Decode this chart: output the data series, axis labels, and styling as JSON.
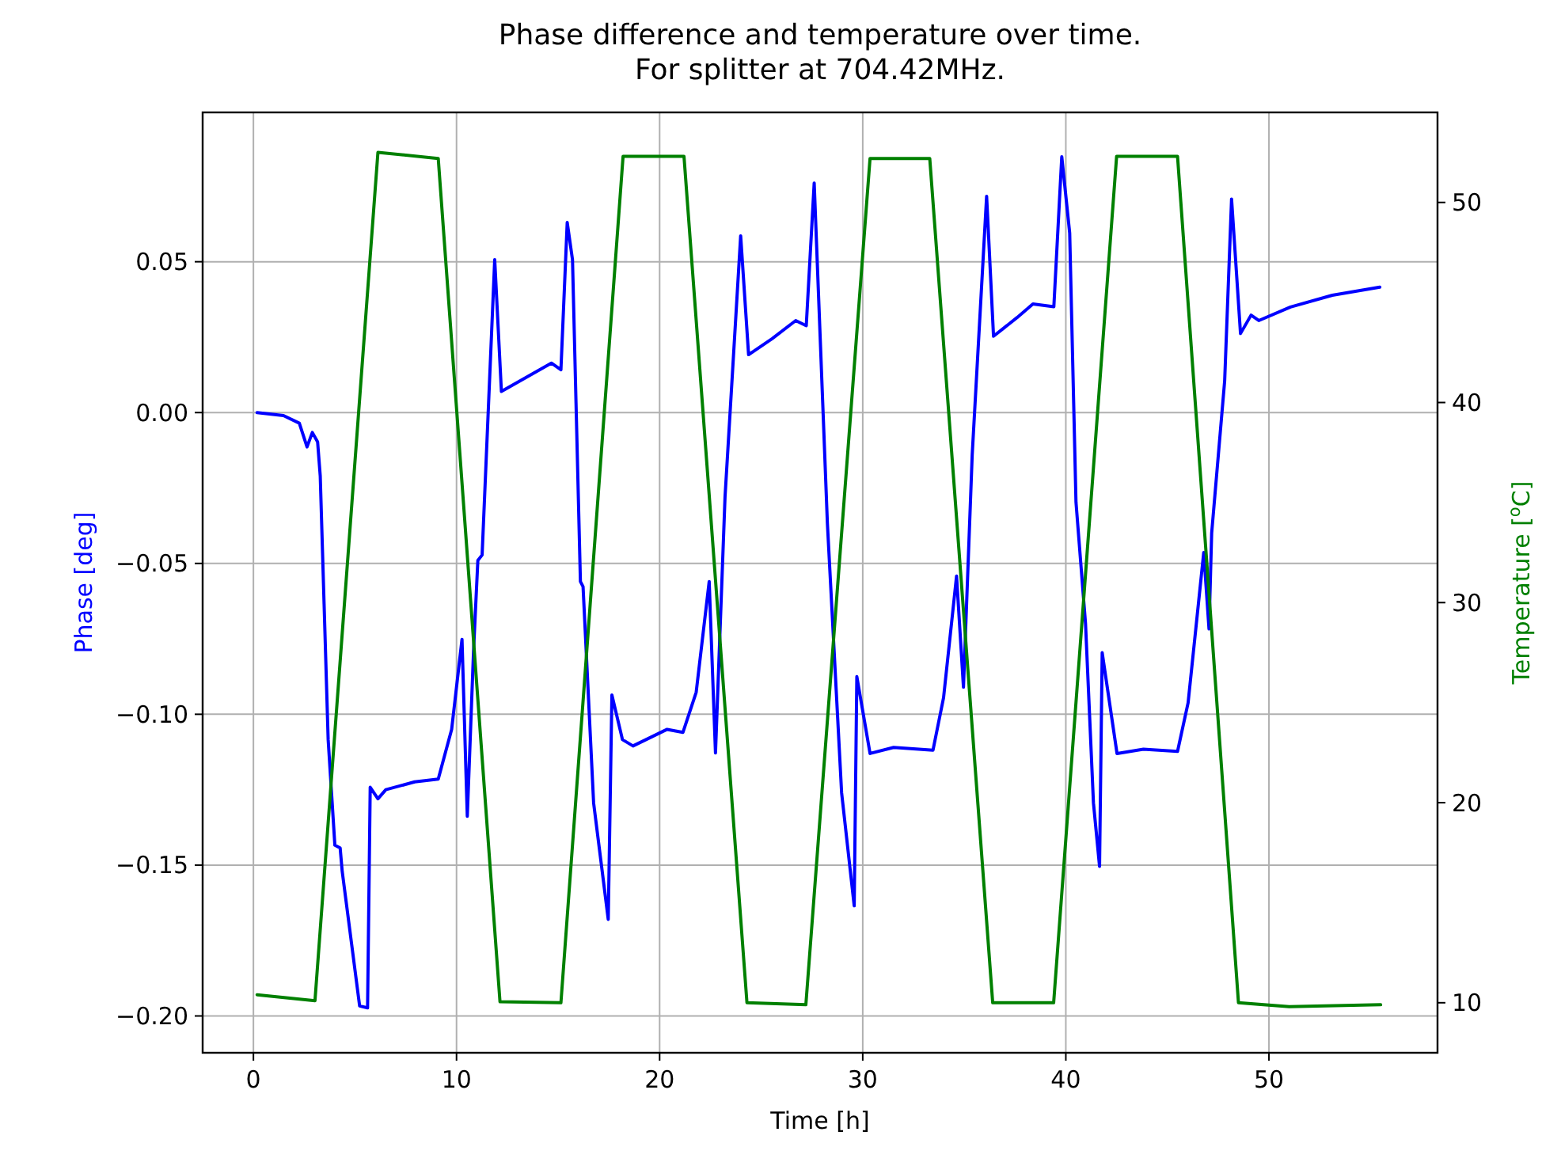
{
  "chart_data": {
    "type": "line",
    "title": "Phase difference and temperature over time.\nFor splitter at 704.42MHz.",
    "xlabel": "Time [h]",
    "ylabel": "Phase [deg]",
    "y2label": "Temperature [$^{o}$C]",
    "xlim": [
      -2.5,
      58.3
    ],
    "xticks": [
      0,
      10,
      20,
      30,
      40,
      50
    ],
    "ylim": [
      -0.2122,
      0.0995
    ],
    "yticks": [
      {
        "value": -0.2,
        "label": "−0.20"
      },
      {
        "value": -0.15,
        "label": "−0.15"
      },
      {
        "value": -0.1,
        "label": "−0.10"
      },
      {
        "value": -0.05,
        "label": "−0.05"
      },
      {
        "value": 0,
        "label": "0.00"
      },
      {
        "value": 0.05,
        "label": "0.05"
      }
    ],
    "y2lim": [
      7.5,
      54.5
    ],
    "y2ticks": [
      10,
      20,
      30,
      40,
      50
    ],
    "grid": true,
    "line_style": "solid",
    "marker": "none",
    "series": [
      {
        "color": "#0000ff",
        "x": [
          0.18,
          1.48,
          2.26,
          2.64,
          2.9,
          3.16,
          3.29,
          3.68,
          4.01,
          4.27,
          4.37,
          5.23,
          5.62,
          5.75,
          6.13,
          6.52,
          7.94,
          9.1,
          9.76,
          10.27,
          10.53,
          10.84,
          11.05,
          11.26,
          11.88,
          12.21,
          13.38,
          14.67,
          15.14,
          15.45,
          15.71,
          16.1,
          16.23,
          16.75,
          17.47,
          17.65,
          18.17,
          18.69,
          20.37,
          21.15,
          21.8,
          22.44,
          22.75,
          23.22,
          23.99,
          24.38,
          25.54,
          26.7,
          27.22,
          27.61,
          28.26,
          28.96,
          29.58,
          29.71,
          30.36,
          31.52,
          33.46,
          33.98,
          34.62,
          34.96,
          35.39,
          36.1,
          36.44,
          37.6,
          38.38,
          39.41,
          39.8,
          40.19,
          40.5,
          40.97,
          41.36,
          41.66,
          41.79,
          42.52,
          43.82,
          45.5,
          46.02,
          46.79,
          47.05,
          47.18,
          47.82,
          48.16,
          48.6,
          49.12,
          49.5,
          51.06,
          53.12,
          55.46
        ],
        "values": [
          0.0,
          -0.001,
          -0.0035,
          -0.0114,
          -0.0066,
          -0.0097,
          -0.021,
          -0.1084,
          -0.1434,
          -0.1443,
          -0.152,
          -0.1967,
          -0.1973,
          -0.1242,
          -0.128,
          -0.125,
          -0.1224,
          -0.1215,
          -0.105,
          -0.0752,
          -0.1338,
          -0.0787,
          -0.049,
          -0.0472,
          0.0507,
          0.007,
          0.0115,
          0.0164,
          0.0142,
          0.063,
          0.0507,
          -0.056,
          -0.0577,
          -0.1294,
          -0.168,
          -0.0936,
          -0.1084,
          -0.1105,
          -0.105,
          -0.106,
          -0.0927,
          -0.056,
          -0.1128,
          -0.028,
          0.0586,
          0.0192,
          0.0245,
          0.0305,
          0.0288,
          0.0761,
          -0.0367,
          -0.126,
          -0.1635,
          -0.0875,
          -0.113,
          -0.111,
          -0.1119,
          -0.0945,
          -0.0542,
          -0.091,
          -0.014,
          0.0717,
          0.0253,
          0.0315,
          0.036,
          0.0351,
          0.0848,
          0.0595,
          -0.0297,
          -0.07,
          -0.1294,
          -0.1504,
          -0.0796,
          -0.113,
          -0.1116,
          -0.1123,
          -0.0962,
          -0.0464,
          -0.0717,
          -0.04,
          0.0105,
          0.0708,
          0.0262,
          0.0323,
          0.0305,
          0.035,
          0.0389,
          0.0416
        ]
      },
      {
        "color": "#008000",
        "axis": "y2",
        "x": [
          0.18,
          3.03,
          6.13,
          9.1,
          12.14,
          15.14,
          18.2,
          21.2,
          24.3,
          27.2,
          30.36,
          33.3,
          36.4,
          39.4,
          42.5,
          45.5,
          48.5,
          51.0,
          55.5
        ],
        "values": [
          10.4,
          10.1,
          52.5,
          52.2,
          10.05,
          10.0,
          52.3,
          52.3,
          10.0,
          9.9,
          52.2,
          52.2,
          10.0,
          10.0,
          52.3,
          52.3,
          10.0,
          9.8,
          9.9
        ]
      }
    ]
  }
}
